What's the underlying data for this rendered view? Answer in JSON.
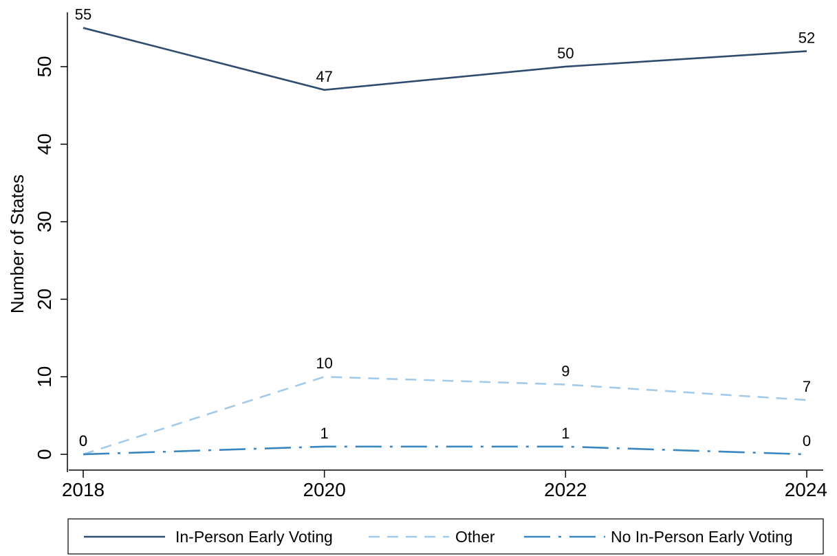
{
  "chart_data": {
    "type": "line",
    "title": "",
    "xlabel": "",
    "ylabel": "Number of States",
    "x": [
      2018,
      2020,
      2022,
      2024
    ],
    "x_tick_labels": [
      "2018",
      "2020",
      "2022",
      "2024"
    ],
    "y_ticks": [
      0,
      10,
      20,
      30,
      40,
      50
    ],
    "y_tick_labels": [
      "0",
      "10",
      "20",
      "30",
      "40",
      "50"
    ],
    "ylim": [
      -2.3,
      57
    ],
    "xlim": [
      2018,
      2024
    ],
    "grid": false,
    "legend_position": "bottom",
    "series": [
      {
        "name": "In-Person Early Voting",
        "values": [
          55,
          47,
          50,
          52
        ],
        "labels": [
          "55",
          "47",
          "50",
          "52"
        ],
        "color": "#2e4c6d",
        "dash": "solid"
      },
      {
        "name": "Other",
        "values": [
          0,
          10,
          9,
          7
        ],
        "labels": [
          "0",
          "10",
          "9",
          "7"
        ],
        "color": "#a3cbe9",
        "dash": "dash"
      },
      {
        "name": "No In-Person Early Voting",
        "values": [
          0,
          1,
          1,
          0
        ],
        "labels": [
          "0",
          "1",
          "1",
          "0"
        ],
        "color": "#3a87c0",
        "dash": "dashdot"
      }
    ]
  }
}
